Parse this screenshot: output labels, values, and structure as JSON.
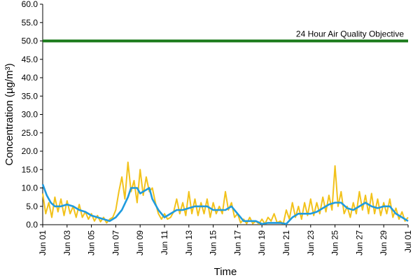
{
  "chart_data": {
    "type": "line",
    "title": "",
    "xlabel": "Time",
    "ylabel": "Concentration (µg/m³)",
    "ylim": [
      0,
      60
    ],
    "xlim": [
      "2023-06-01",
      "2023-07-01"
    ],
    "grid": false,
    "y_ticks": [
      "0.0",
      "5.0",
      "10.0",
      "15.0",
      "20.0",
      "25.0",
      "30.0",
      "35.0",
      "40.0",
      "45.0",
      "50.0",
      "55.0",
      "60.0"
    ],
    "x_ticks": [
      {
        "date": "2023-06-01",
        "label": "Jun 01"
      },
      {
        "date": "2023-06-03",
        "label": "Jun 03"
      },
      {
        "date": "2023-06-05",
        "label": "Jun 05"
      },
      {
        "date": "2023-06-07",
        "label": "Jun 07"
      },
      {
        "date": "2023-06-09",
        "label": "Jun 09"
      },
      {
        "date": "2023-06-11",
        "label": "Jun 11"
      },
      {
        "date": "2023-06-13",
        "label": "Jun 13"
      },
      {
        "date": "2023-06-15",
        "label": "Jun 15"
      },
      {
        "date": "2023-06-17",
        "label": "Jun 17"
      },
      {
        "date": "2023-06-19",
        "label": "Jun 19"
      },
      {
        "date": "2023-06-21",
        "label": "Jun 21"
      },
      {
        "date": "2023-06-23",
        "label": "Jun 23"
      },
      {
        "date": "2023-06-25",
        "label": "Jun 25"
      },
      {
        "date": "2023-06-27",
        "label": "Jun 27"
      },
      {
        "date": "2023-06-29",
        "label": "Jun 29"
      },
      {
        "date": "2023-07-01",
        "label": "Jul 01"
      }
    ],
    "objective": {
      "value": 50,
      "label": "24 Hour Air Quality Objective",
      "color": "#1a7a1a"
    },
    "series": [
      {
        "color": "#f2c21b",
        "points": [
          [
            "2023-06-01T00:00",
            8.5
          ],
          [
            "2023-06-01T06:00",
            3.0
          ],
          [
            "2023-06-01T12:00",
            6.0
          ],
          [
            "2023-06-01T18:00",
            2.0
          ],
          [
            "2023-06-02T00:00",
            7.5
          ],
          [
            "2023-06-02T06:00",
            3.5
          ],
          [
            "2023-06-02T12:00",
            7.0
          ],
          [
            "2023-06-02T18:00",
            2.5
          ],
          [
            "2023-06-03T00:00",
            6.5
          ],
          [
            "2023-06-03T06:00",
            3.0
          ],
          [
            "2023-06-03T12:00",
            5.0
          ],
          [
            "2023-06-03T18:00",
            2.0
          ],
          [
            "2023-06-04T00:00",
            5.5
          ],
          [
            "2023-06-04T06:00",
            2.0
          ],
          [
            "2023-06-04T12:00",
            3.5
          ],
          [
            "2023-06-04T18:00",
            1.5
          ],
          [
            "2023-06-05T00:00",
            3.0
          ],
          [
            "2023-06-05T06:00",
            1.0
          ],
          [
            "2023-06-05T12:00",
            2.5
          ],
          [
            "2023-06-05T18:00",
            0.8
          ],
          [
            "2023-06-06T00:00",
            2.0
          ],
          [
            "2023-06-06T06:00",
            0.5
          ],
          [
            "2023-06-06T12:00",
            1.5
          ],
          [
            "2023-06-06T18:00",
            2.0
          ],
          [
            "2023-06-07T00:00",
            4.0
          ],
          [
            "2023-06-07T06:00",
            9.0
          ],
          [
            "2023-06-07T12:00",
            13.0
          ],
          [
            "2023-06-07T18:00",
            7.0
          ],
          [
            "2023-06-08T00:00",
            17.0
          ],
          [
            "2023-06-08T06:00",
            9.0
          ],
          [
            "2023-06-08T12:00",
            12.0
          ],
          [
            "2023-06-08T18:00",
            6.0
          ],
          [
            "2023-06-09T00:00",
            15.0
          ],
          [
            "2023-06-09T06:00",
            8.0
          ],
          [
            "2023-06-09T12:00",
            13.0
          ],
          [
            "2023-06-09T18:00",
            9.0
          ],
          [
            "2023-06-10T00:00",
            10.0
          ],
          [
            "2023-06-10T06:00",
            6.0
          ],
          [
            "2023-06-10T12:00",
            3.0
          ],
          [
            "2023-06-10T18:00",
            1.5
          ],
          [
            "2023-06-11T00:00",
            3.0
          ],
          [
            "2023-06-11T06:00",
            1.5
          ],
          [
            "2023-06-11T12:00",
            2.0
          ],
          [
            "2023-06-11T18:00",
            3.5
          ],
          [
            "2023-06-12T00:00",
            7.0
          ],
          [
            "2023-06-12T06:00",
            3.0
          ],
          [
            "2023-06-12T12:00",
            6.0
          ],
          [
            "2023-06-12T18:00",
            2.5
          ],
          [
            "2023-06-13T00:00",
            9.0
          ],
          [
            "2023-06-13T06:00",
            3.0
          ],
          [
            "2023-06-13T12:00",
            7.0
          ],
          [
            "2023-06-13T18:00",
            2.5
          ],
          [
            "2023-06-14T00:00",
            6.0
          ],
          [
            "2023-06-14T06:00",
            3.0
          ],
          [
            "2023-06-14T12:00",
            7.0
          ],
          [
            "2023-06-14T18:00",
            2.0
          ],
          [
            "2023-06-15T00:00",
            6.0
          ],
          [
            "2023-06-15T06:00",
            3.0
          ],
          [
            "2023-06-15T12:00",
            5.0
          ],
          [
            "2023-06-15T18:00",
            3.0
          ],
          [
            "2023-06-16T00:00",
            9.0
          ],
          [
            "2023-06-16T06:00",
            4.0
          ],
          [
            "2023-06-16T12:00",
            6.0
          ],
          [
            "2023-06-16T18:00",
            2.0
          ],
          [
            "2023-06-17T00:00",
            3.0
          ],
          [
            "2023-06-17T06:00",
            0.5
          ],
          [
            "2023-06-17T12:00",
            1.5
          ],
          [
            "2023-06-17T18:00",
            0.3
          ],
          [
            "2023-06-18T00:00",
            2.0
          ],
          [
            "2023-06-18T06:00",
            0.3
          ],
          [
            "2023-06-18T12:00",
            1.0
          ],
          [
            "2023-06-18T18:00",
            0.2
          ],
          [
            "2023-06-19T00:00",
            1.5
          ],
          [
            "2023-06-19T06:00",
            0.2
          ],
          [
            "2023-06-19T12:00",
            2.0
          ],
          [
            "2023-06-19T18:00",
            1.0
          ],
          [
            "2023-06-20T00:00",
            3.0
          ],
          [
            "2023-06-20T06:00",
            0.5
          ],
          [
            "2023-06-20T12:00",
            1.0
          ],
          [
            "2023-06-20T18:00",
            0.2
          ],
          [
            "2023-06-21T00:00",
            4.0
          ],
          [
            "2023-06-21T06:00",
            1.5
          ],
          [
            "2023-06-21T12:00",
            6.0
          ],
          [
            "2023-06-21T18:00",
            2.0
          ],
          [
            "2023-06-22T00:00",
            5.0
          ],
          [
            "2023-06-22T06:00",
            1.5
          ],
          [
            "2023-06-22T12:00",
            6.0
          ],
          [
            "2023-06-22T18:00",
            2.5
          ],
          [
            "2023-06-23T00:00",
            7.0
          ],
          [
            "2023-06-23T06:00",
            2.5
          ],
          [
            "2023-06-23T12:00",
            6.0
          ],
          [
            "2023-06-23T18:00",
            3.0
          ],
          [
            "2023-06-24T00:00",
            7.5
          ],
          [
            "2023-06-24T06:00",
            3.5
          ],
          [
            "2023-06-24T12:00",
            8.0
          ],
          [
            "2023-06-24T18:00",
            4.0
          ],
          [
            "2023-06-25T00:00",
            16.0
          ],
          [
            "2023-06-25T06:00",
            5.0
          ],
          [
            "2023-06-25T12:00",
            9.0
          ],
          [
            "2023-06-25T18:00",
            3.0
          ],
          [
            "2023-06-26T00:00",
            5.0
          ],
          [
            "2023-06-26T06:00",
            2.0
          ],
          [
            "2023-06-26T12:00",
            6.0
          ],
          [
            "2023-06-26T18:00",
            3.0
          ],
          [
            "2023-06-27T00:00",
            9.0
          ],
          [
            "2023-06-27T06:00",
            4.0
          ],
          [
            "2023-06-27T12:00",
            8.0
          ],
          [
            "2023-06-27T18:00",
            3.0
          ],
          [
            "2023-06-28T00:00",
            8.5
          ],
          [
            "2023-06-28T06:00",
            3.0
          ],
          [
            "2023-06-28T12:00",
            7.0
          ],
          [
            "2023-06-28T18:00",
            2.5
          ],
          [
            "2023-06-29T00:00",
            6.0
          ],
          [
            "2023-06-29T06:00",
            3.0
          ],
          [
            "2023-06-29T12:00",
            7.0
          ],
          [
            "2023-06-29T18:00",
            2.0
          ],
          [
            "2023-06-30T00:00",
            4.5
          ],
          [
            "2023-06-30T06:00",
            1.5
          ],
          [
            "2023-06-30T12:00",
            3.5
          ],
          [
            "2023-06-30T18:00",
            1.0
          ],
          [
            "2023-07-01T00:00",
            2.0
          ]
        ]
      },
      {
        "color": "#1f9bde",
        "points": [
          [
            "2023-06-01T00:00",
            11.0
          ],
          [
            "2023-06-01T08:00",
            8.0
          ],
          [
            "2023-06-01T16:00",
            6.0
          ],
          [
            "2023-06-02T00:00",
            5.0
          ],
          [
            "2023-06-02T12:00",
            5.0
          ],
          [
            "2023-06-03T00:00",
            5.5
          ],
          [
            "2023-06-03T12:00",
            5.0
          ],
          [
            "2023-06-04T00:00",
            4.0
          ],
          [
            "2023-06-04T12:00",
            3.5
          ],
          [
            "2023-06-05T00:00",
            2.5
          ],
          [
            "2023-06-05T12:00",
            2.0
          ],
          [
            "2023-06-06T00:00",
            1.5
          ],
          [
            "2023-06-06T12:00",
            1.0
          ],
          [
            "2023-06-07T00:00",
            2.0
          ],
          [
            "2023-06-07T12:00",
            4.0
          ],
          [
            "2023-06-08T00:00",
            7.5
          ],
          [
            "2023-06-08T06:00",
            10.0
          ],
          [
            "2023-06-08T18:00",
            10.0
          ],
          [
            "2023-06-09T00:00",
            8.5
          ],
          [
            "2023-06-09T12:00",
            9.5
          ],
          [
            "2023-06-09T18:00",
            10.0
          ],
          [
            "2023-06-10T00:00",
            7.0
          ],
          [
            "2023-06-10T12:00",
            4.0
          ],
          [
            "2023-06-11T00:00",
            2.0
          ],
          [
            "2023-06-11T12:00",
            3.0
          ],
          [
            "2023-06-12T00:00",
            4.0
          ],
          [
            "2023-06-12T12:00",
            4.0
          ],
          [
            "2023-06-13T00:00",
            4.5
          ],
          [
            "2023-06-13T12:00",
            5.0
          ],
          [
            "2023-06-14T00:00",
            5.0
          ],
          [
            "2023-06-14T12:00",
            5.0
          ],
          [
            "2023-06-15T00:00",
            4.0
          ],
          [
            "2023-06-15T12:00",
            4.0
          ],
          [
            "2023-06-16T00:00",
            4.0
          ],
          [
            "2023-06-16T12:00",
            5.0
          ],
          [
            "2023-06-17T00:00",
            3.0
          ],
          [
            "2023-06-17T12:00",
            1.0
          ],
          [
            "2023-06-18T00:00",
            1.0
          ],
          [
            "2023-06-18T12:00",
            1.0
          ],
          [
            "2023-06-19T00:00",
            0.2
          ],
          [
            "2023-06-19T12:00",
            0.5
          ],
          [
            "2023-06-20T00:00",
            0.5
          ],
          [
            "2023-06-20T12:00",
            0.5
          ],
          [
            "2023-06-21T00:00",
            0.2
          ],
          [
            "2023-06-21T12:00",
            2.0
          ],
          [
            "2023-06-22T00:00",
            3.0
          ],
          [
            "2023-06-22T12:00",
            3.0
          ],
          [
            "2023-06-23T00:00",
            3.0
          ],
          [
            "2023-06-23T12:00",
            3.5
          ],
          [
            "2023-06-24T00:00",
            4.5
          ],
          [
            "2023-06-24T12:00",
            5.5
          ],
          [
            "2023-06-25T00:00",
            6.0
          ],
          [
            "2023-06-25T12:00",
            6.0
          ],
          [
            "2023-06-26T00:00",
            4.5
          ],
          [
            "2023-06-26T12:00",
            4.0
          ],
          [
            "2023-06-27T00:00",
            5.0
          ],
          [
            "2023-06-27T12:00",
            6.0
          ],
          [
            "2023-06-28T00:00",
            5.0
          ],
          [
            "2023-06-28T12:00",
            4.5
          ],
          [
            "2023-06-29T00:00",
            5.0
          ],
          [
            "2023-06-29T12:00",
            5.0
          ],
          [
            "2023-06-30T00:00",
            3.0
          ],
          [
            "2023-06-30T12:00",
            2.0
          ],
          [
            "2023-07-01T00:00",
            1.0
          ]
        ]
      }
    ]
  }
}
